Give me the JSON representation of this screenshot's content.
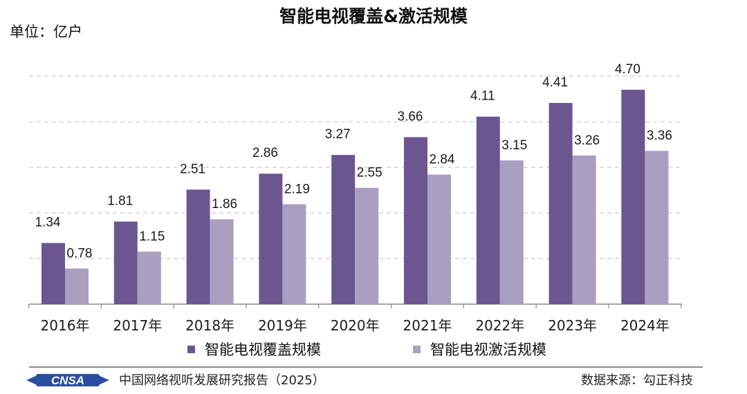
{
  "chart_data": {
    "type": "bar",
    "title": "智能电视覆盖&激活规模",
    "ylabel": "单位：亿户",
    "xlabel": "",
    "categories": [
      "2016年",
      "2017年",
      "2018年",
      "2019年",
      "2020年",
      "2021年",
      "2022年",
      "2023年",
      "2024年"
    ],
    "series": [
      {
        "name": "智能电视覆盖规模",
        "values": [
          1.34,
          1.81,
          2.51,
          2.86,
          3.27,
          3.66,
          4.11,
          4.41,
          4.7
        ],
        "labels": [
          "1.34",
          "1.81",
          "2.51",
          "2.86",
          "3.27",
          "3.66",
          "4.11",
          "4.41",
          "4.70"
        ],
        "color": "#6b5690"
      },
      {
        "name": "智能电视激活规模",
        "values": [
          0.78,
          1.15,
          1.86,
          2.19,
          2.55,
          2.84,
          3.15,
          3.26,
          3.36
        ],
        "labels": [
          "0.78",
          "1.15",
          "1.86",
          "2.19",
          "2.55",
          "2.84",
          "3.15",
          "3.26",
          "3.36"
        ],
        "color": "#aa9fc0"
      }
    ],
    "ylim": [
      0,
      5
    ],
    "grid": true,
    "legend": "bottom"
  },
  "footer": {
    "logo_text": "CNSA",
    "report": "中国网络视听发展研究报告（2025）",
    "source": "数据来源：勾正科技"
  }
}
